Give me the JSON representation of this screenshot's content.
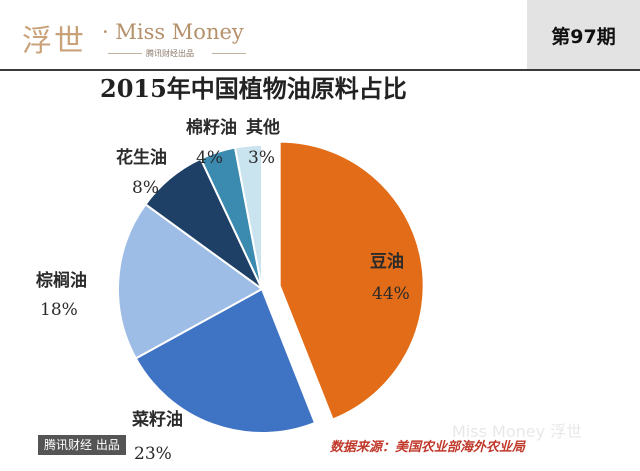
{
  "header": {
    "logo_cn": "浮世",
    "logo_en": "· Miss Money",
    "logo_sub": "腾讯财经出品",
    "issue": "第97期"
  },
  "colors": {
    "soybean": "#e26c17",
    "rapeseed": "#3f73c4",
    "palm": "#9dbde6",
    "peanut": "#1e3f66",
    "cottonseed": "#3b8ab0",
    "other": "#c9e3ef",
    "label_text": "#2b2b2b"
  },
  "chart_data": {
    "type": "pie",
    "title": "2015年中国植物油原料占比",
    "slices": [
      {
        "label": "豆油",
        "value": 44,
        "value_label": "44%",
        "exploded": true
      },
      {
        "label": "菜籽油",
        "value": 23,
        "value_label": "23%"
      },
      {
        "label": "棕榈油",
        "value": 18,
        "value_label": "18%"
      },
      {
        "label": "花生油",
        "value": 8,
        "value_label": "8%"
      },
      {
        "label": "棉籽油",
        "value": 4,
        "value_label": "4%"
      },
      {
        "label": "其他",
        "value": 3,
        "value_label": "3%"
      }
    ]
  },
  "footer": {
    "badge": "腾讯财经 出品",
    "source": "数据来源：美国农业部海外农业局",
    "watermark": "Miss Money 浮世"
  }
}
